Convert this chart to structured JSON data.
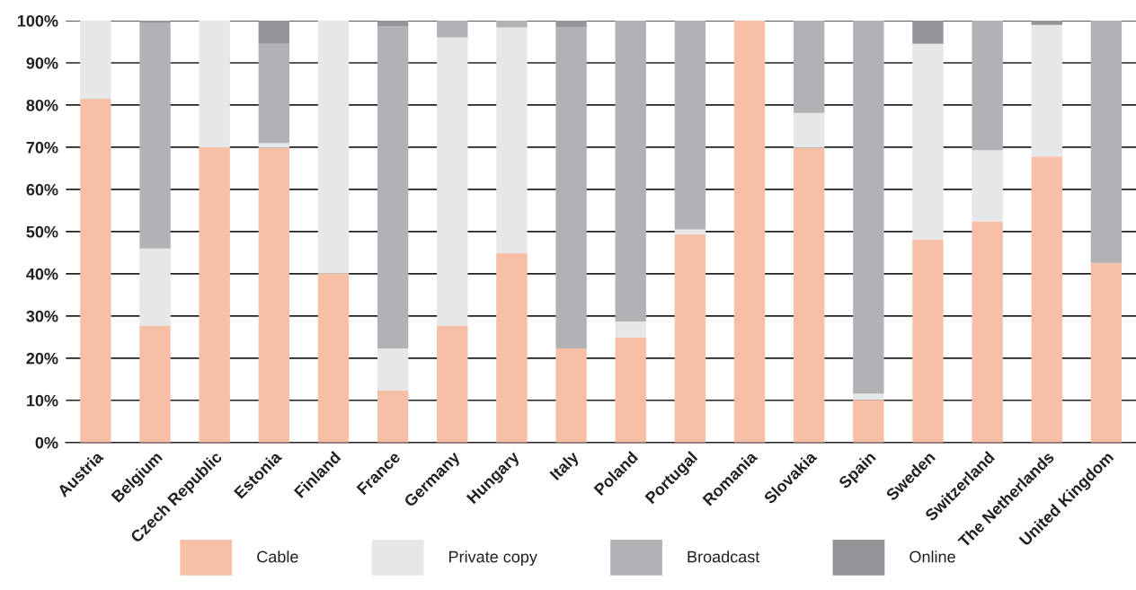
{
  "chart_data": {
    "type": "bar",
    "stacked": true,
    "categories": [
      "Austria",
      "Belgium",
      "Czech Republic",
      "Estonia",
      "Finland",
      "France",
      "Germany",
      "Hungary",
      "Italy",
      "Poland",
      "Portugal",
      "Romania",
      "Slovakia",
      "Spain",
      "Sweden",
      "Switzerland",
      "The Netherlands",
      "United Kingdom"
    ],
    "series": [
      {
        "name": "Cable",
        "color": "#f6bfa6",
        "values": [
          81.5,
          27.6,
          70,
          69.9,
          40,
          12.3,
          27.6,
          44.9,
          22.3,
          24.9,
          49.4,
          100,
          69.9,
          10.1,
          48.1,
          52.4,
          67.8,
          42.6
        ]
      },
      {
        "name": "Private copy",
        "color": "#e6e7e9",
        "values": [
          18.5,
          18.4,
          30,
          1.1,
          60,
          10,
          68.4,
          53.5,
          0,
          3.8,
          1.1,
          0,
          8.2,
          1.5,
          46.4,
          16.9,
          31.2,
          0
        ]
      },
      {
        "name": "Broadcast",
        "color": "#b1b2b6",
        "values": [
          0,
          53.4,
          0,
          23.5,
          0,
          76.3,
          4,
          1.6,
          76.1,
          71.3,
          49.5,
          0,
          21.9,
          88.4,
          0,
          30.7,
          0,
          57.4
        ]
      },
      {
        "name": "Online",
        "color": "#939598",
        "values": [
          0,
          0.6,
          0,
          5.5,
          0,
          1.4,
          0,
          0,
          1.6,
          0,
          0,
          0,
          0,
          0,
          5.5,
          0,
          1,
          0
        ]
      }
    ],
    "ylim": [
      0,
      100
    ],
    "yticks": [
      {
        "value": 0,
        "label": "0%"
      },
      {
        "value": 10,
        "label": "10%"
      },
      {
        "value": 20,
        "label": "20%"
      },
      {
        "value": 30,
        "label": "30%"
      },
      {
        "value": 40,
        "label": "40%"
      },
      {
        "value": 50,
        "label": "50%"
      },
      {
        "value": 60,
        "label": "60%"
      },
      {
        "value": 70,
        "label": "70%"
      },
      {
        "value": 80,
        "label": "80%"
      },
      {
        "value": 90,
        "label": "90%"
      },
      {
        "value": 100,
        "label": "100%"
      }
    ],
    "grid": "y",
    "legend": "bottom"
  }
}
